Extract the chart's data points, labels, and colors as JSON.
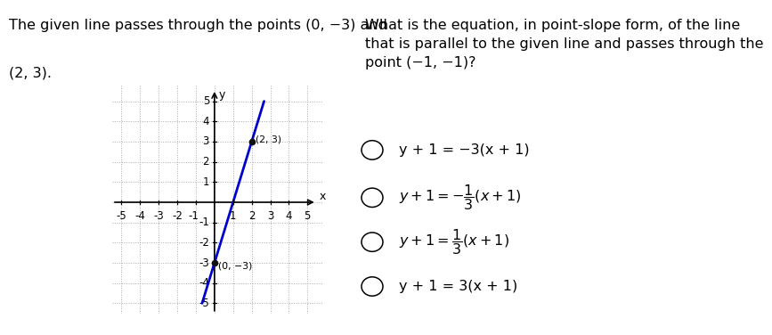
{
  "left_text_line1": "The given line passes through the points (0, −3) and",
  "left_text_line2": "(2, 3).",
  "graph_xlim": [
    -5.5,
    5.8
  ],
  "graph_ylim": [
    -5.5,
    5.8
  ],
  "graph_xticks": [
    -5,
    -4,
    -3,
    -2,
    -1,
    1,
    2,
    3,
    4,
    5
  ],
  "graph_yticks": [
    -5,
    -4,
    -3,
    -2,
    -1,
    1,
    2,
    3,
    4,
    5
  ],
  "line_color": "#0000CC",
  "line_width": 2.0,
  "point1": [
    0,
    -3
  ],
  "point1_label": "(0, −3)",
  "point2": [
    2,
    3
  ],
  "point2_label": "(2, 3)",
  "point_color": "#111111",
  "grid_color": "#aaaaaa",
  "axis_color": "#000000",
  "xlabel": "x",
  "ylabel": "y",
  "right_question": "What is the equation, in point-slope form, of the line\nthat is parallel to the given line and passes through the\npoint (−1, −1)?",
  "choice1": "y + 1 = −3(x + 1)",
  "choice4": "y + 1 = 3(x + 1)",
  "bg_color": "#ffffff",
  "text_color": "#000000",
  "font_size_text": 11.5,
  "font_size_tick": 8.5,
  "font_size_choice": 11.5
}
